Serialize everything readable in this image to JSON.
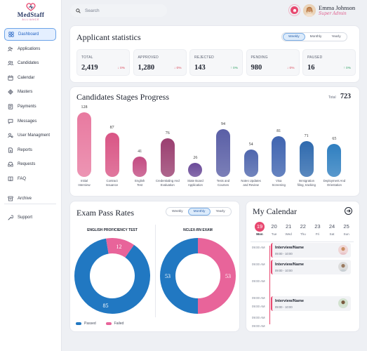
{
  "brand": {
    "name": "MedStaff",
    "sub": "ALLIANCE"
  },
  "sidebar": {
    "items": [
      {
        "label": "Dashboard",
        "icon": "grid-icon",
        "active": true
      },
      {
        "label": "Applications",
        "icon": "user-plus-icon"
      },
      {
        "label": "Candidates",
        "icon": "users-icon"
      },
      {
        "label": "Calendar",
        "icon": "calendar-icon"
      },
      {
        "label": "Masters",
        "icon": "diamond-icon"
      },
      {
        "label": "Payments",
        "icon": "receipt-icon"
      },
      {
        "label": "Messages",
        "icon": "chat-icon"
      },
      {
        "label": "User Managment",
        "icon": "user-gear-icon"
      },
      {
        "label": "Reports",
        "icon": "report-icon"
      },
      {
        "label": "Requests",
        "icon": "inbox-icon"
      },
      {
        "label": "FAQ",
        "icon": "book-icon"
      },
      {
        "label": "Archive",
        "icon": "archive-icon"
      }
    ],
    "support": {
      "label": "Support",
      "icon": "wrench-icon"
    }
  },
  "header": {
    "search_placeholder": "Search",
    "user_name": "Emma Johnson",
    "user_role": "Super Admin"
  },
  "applicant_stats": {
    "title": "Applicant statistics",
    "periods": [
      "Weekly",
      "Monthly",
      "Yearly"
    ],
    "selected_period": "Weekly",
    "cards": [
      {
        "label": "TOTAL",
        "value": "2,419",
        "delta": "↓ 0%",
        "trend": "down"
      },
      {
        "label": "APPROVED",
        "value": "1,280",
        "delta": "↓ 0%",
        "trend": "down"
      },
      {
        "label": "REJECTED",
        "value": "143",
        "delta": "↑ 0%",
        "trend": "up"
      },
      {
        "label": "PENDING",
        "value": "980",
        "delta": "↓ 0%",
        "trend": "down"
      },
      {
        "label": "PAUSED",
        "value": "16",
        "delta": "↑ 0%",
        "trend": "up"
      }
    ]
  },
  "stages": {
    "title": "Candidates Stages Progress",
    "total_label": "Total",
    "total_value": "723"
  },
  "chart_data": [
    {
      "type": "bar",
      "categories": [
        "Initial Interview",
        "Contract Issuance",
        "English Test",
        "Credentialing And Evaluation",
        "State Board Application",
        "Tests and Courses",
        "Notes Updates and Review",
        "Visa Screening",
        "Immigration filing, tracking",
        "Deployment And Orientation"
      ],
      "category_lines": [
        [
          "Initial",
          "Interview"
        ],
        [
          "Contract",
          "Issuance"
        ],
        [
          "English",
          "Test"
        ],
        [
          "Credentialing And",
          "Evaluation"
        ],
        [
          "State Board",
          "Application"
        ],
        [
          "Tests and",
          "Courses"
        ],
        [
          "Notes Updates",
          "and Review"
        ],
        [
          "Visa",
          "Screening"
        ],
        [
          "Immigration",
          "filing, tracking"
        ],
        [
          "Deployment And",
          "Orientation"
        ]
      ],
      "values": [
        128,
        87,
        41,
        76,
        26,
        94,
        54,
        81,
        71,
        65
      ],
      "colors": [
        "#e87aa0",
        "#d95585",
        "#c34c82",
        "#9a3f70",
        "#6a4a98",
        "#5a5fa6",
        "#4f66ad",
        "#3f64b0",
        "#2f6aae",
        "#2f7fc0"
      ],
      "ylim": [
        0,
        128
      ]
    },
    {
      "type": "pie",
      "title": "ENGLISH PROFICIENCY TEST",
      "series": [
        {
          "name": "Passed",
          "value": 85,
          "color": "#2178c2"
        },
        {
          "name": "Failed",
          "value": 12,
          "color": "#e8649a"
        }
      ]
    },
    {
      "type": "pie",
      "title": "NCLEX-RN EXAM",
      "series": [
        {
          "name": "Passed",
          "value": 53,
          "color": "#2178c2"
        },
        {
          "name": "Failed",
          "value": 53,
          "color": "#e8649a"
        }
      ]
    }
  ],
  "exam": {
    "title": "Exam Pass Rates",
    "periods": [
      "Weekly",
      "Monthly",
      "Yearly"
    ],
    "selected_period": "Monthly",
    "legend": [
      {
        "label": "Passed",
        "color": "#2178c2"
      },
      {
        "label": "Failed",
        "color": "#e8649a"
      }
    ]
  },
  "calendar": {
    "title": "My Calendar",
    "days": [
      {
        "num": "19",
        "dow": "Mon",
        "selected": true
      },
      {
        "num": "20",
        "dow": "Tue"
      },
      {
        "num": "21",
        "dow": "Wed"
      },
      {
        "num": "22",
        "dow": "Thu"
      },
      {
        "num": "23",
        "dow": "Fri"
      },
      {
        "num": "24",
        "dow": "Sat"
      },
      {
        "num": "25",
        "dow": "Sun"
      }
    ],
    "slots": [
      "09:00 AM",
      "09:00 AM",
      "09:00 AM",
      "09:00 AM",
      "09:00 AM",
      "09:00 AM",
      "09:00 AM"
    ],
    "events": [
      {
        "title": "Interview/Name",
        "time": "09:00 - 10:00"
      },
      {
        "title": "Interview/Name",
        "time": "09:00 - 10:00"
      },
      {
        "title": "Interview/Name",
        "time": "09:00 - 10:00"
      }
    ]
  }
}
